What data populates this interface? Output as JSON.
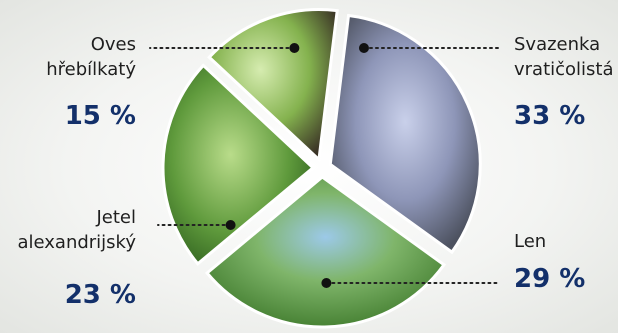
{
  "chart_data": {
    "type": "pie",
    "title": "",
    "slices": [
      {
        "name_lines": [
          "Svazenka",
          "vratičolistá"
        ],
        "value": 33,
        "value_label": "33 %",
        "color": "#8e96b8"
      },
      {
        "name_lines": [
          "Len"
        ],
        "value": 29,
        "value_label": "29 %",
        "color": "#6fa35a"
      },
      {
        "name_lines": [
          "Jetel",
          "alexandrijský"
        ],
        "value": 23,
        "value_label": "23 %",
        "color": "#5f9a3c"
      },
      {
        "name_lines": [
          "Oves",
          "hřebílkatý"
        ],
        "value": 15,
        "value_label": "15 %",
        "color": "#7fae4a"
      }
    ],
    "legend": "none",
    "exploded": true
  }
}
